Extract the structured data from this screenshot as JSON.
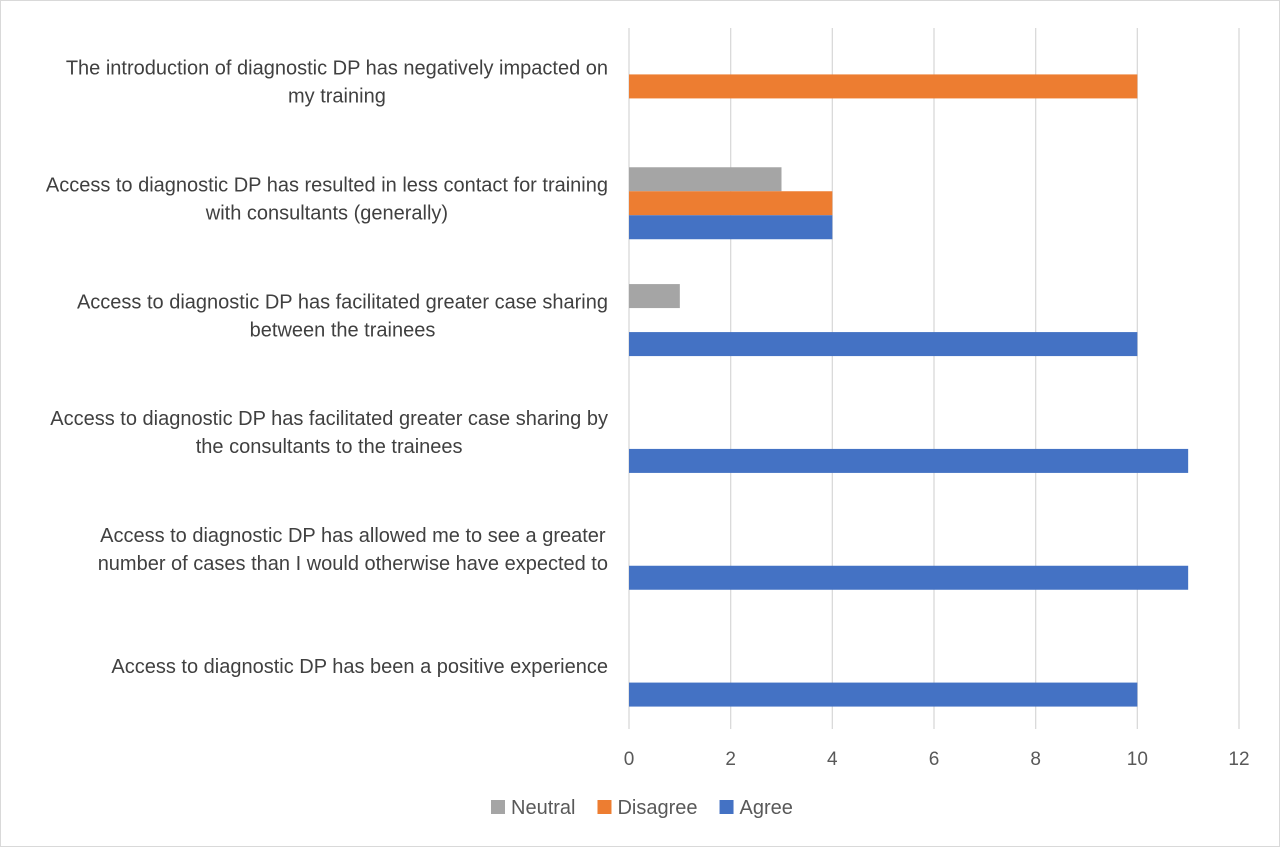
{
  "chart_data": {
    "type": "bar",
    "orientation": "horizontal",
    "title": "",
    "xlabel": "",
    "ylabel": "",
    "xlim": [
      0,
      12
    ],
    "x_ticks": [
      0,
      2,
      4,
      6,
      8,
      10,
      12
    ],
    "grid": true,
    "legend_position": "bottom",
    "categories": [
      [
        "The introduction of diagnostic DP has negatively impacted on",
        "my training"
      ],
      [
        "Access to diagnostic DP has resulted in less contact for training",
        "with consultants (generally)"
      ],
      [
        "Access to diagnostic DP has facilitated greater case sharing",
        "between the trainees"
      ],
      [
        "Access to diagnostic DP has facilitated greater case sharing by",
        "the consultants to the trainees"
      ],
      [
        "Access to diagnostic DP has allowed me to see a greater",
        "number of cases than I would otherwise have expected to"
      ],
      [
        "Access to diagnostic DP has been a positive experience"
      ]
    ],
    "series": [
      {
        "name": "Neutral",
        "color": "#a5a5a5",
        "values": [
          0,
          3,
          1,
          0,
          0,
          0
        ]
      },
      {
        "name": "Disagree",
        "color": "#ed7d31",
        "values": [
          10,
          4,
          0,
          0,
          0,
          0
        ]
      },
      {
        "name": "Agree",
        "color": "#4472c4",
        "values": [
          0,
          4,
          10,
          11,
          11,
          10
        ]
      }
    ]
  }
}
